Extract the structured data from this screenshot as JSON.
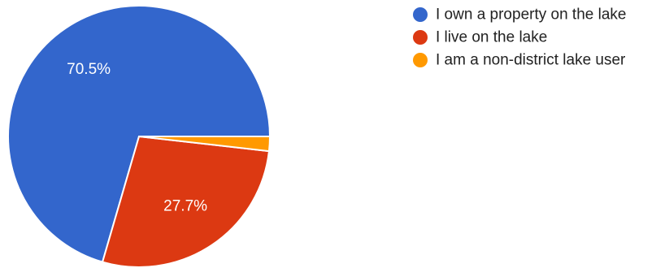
{
  "chart_data": {
    "type": "pie",
    "title": "",
    "legend_position": "top-right",
    "start_angle_deg": 0,
    "direction": "counterclockwise",
    "slices": [
      {
        "label": "I own a property on the lake",
        "value": 70.5,
        "display_label": "70.5%",
        "color": "#3366cc"
      },
      {
        "label": "I live on the lake",
        "value": 27.7,
        "display_label": "27.7%",
        "color": "#dc3912"
      },
      {
        "label": "I am a non-district lake user",
        "value": 1.8,
        "display_label": "",
        "color": "#ff9900"
      }
    ]
  }
}
